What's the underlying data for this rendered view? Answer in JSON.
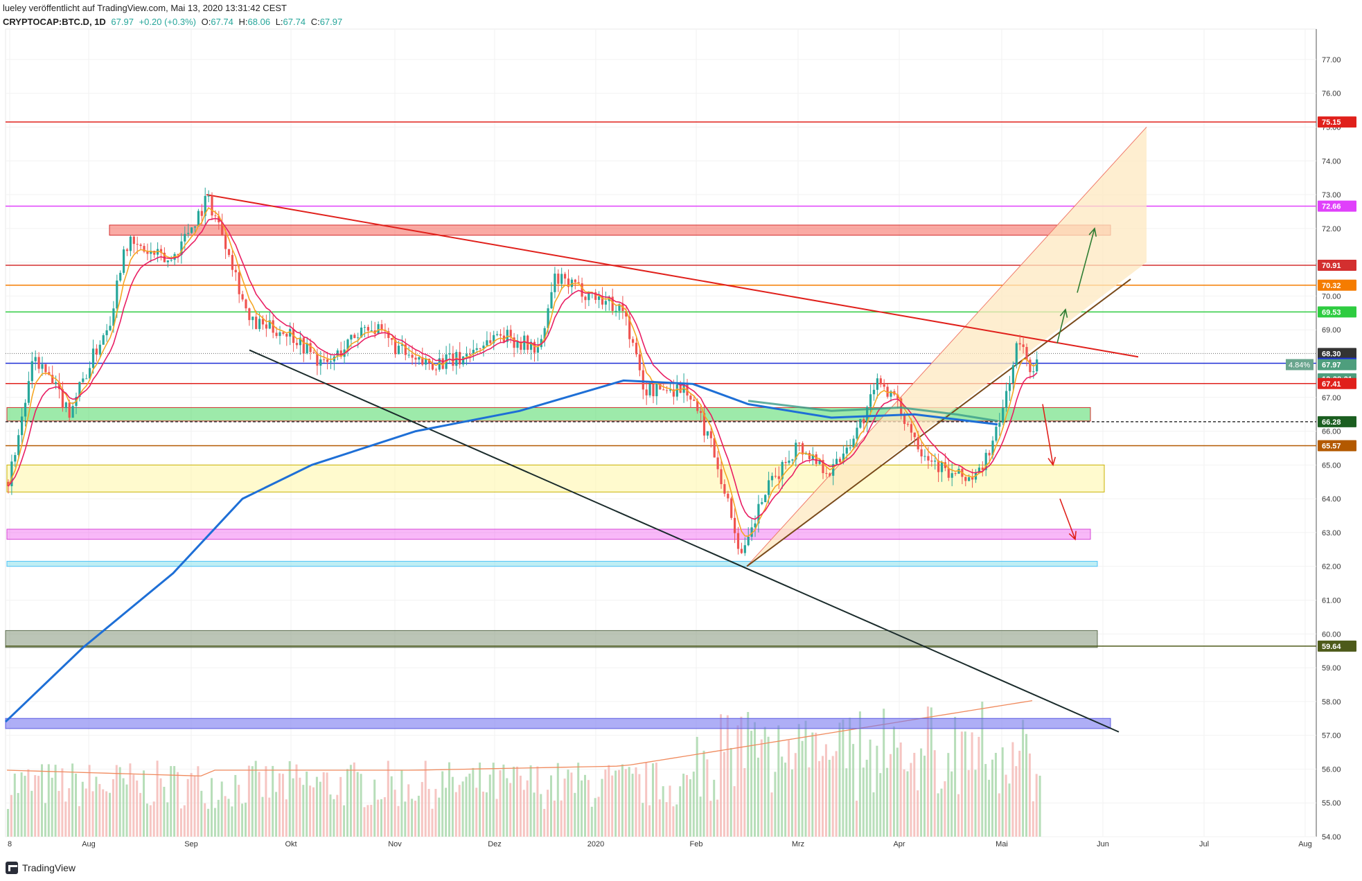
{
  "header": {
    "line1": "lueley veröffentlicht auf TradingView.com, Mai 13, 2020 13:31:42 CEST",
    "symbol": "CRYPTOCAP:BTC.D, 1D",
    "last": "67.97",
    "change": "+0.20 (+0.3%)",
    "o_label": "O:",
    "o": "67.74",
    "h_label": "H:",
    "h": "68.06",
    "l_label": "L:",
    "l": "67.74",
    "c_label": "C:",
    "c": "67.97"
  },
  "footer": {
    "brand": "TradingView"
  },
  "chart_data": {
    "type": "line",
    "title": "",
    "y_range": [
      54.0,
      77.9
    ],
    "y_ticks": [
      "54.00",
      "55.00",
      "56.00",
      "57.00",
      "58.00",
      "59.00",
      "60.00",
      "61.00",
      "62.00",
      "63.00",
      "64.00",
      "65.00",
      "66.00",
      "67.00",
      "68.00",
      "69.00",
      "70.00",
      "71.00",
      "72.00",
      "73.00",
      "74.00",
      "75.00",
      "76.00",
      "77.00"
    ],
    "x_ticks": [
      "8",
      "Aug",
      "Sep",
      "Okt",
      "Nov",
      "Dez",
      "2020",
      "Feb",
      "Mrz",
      "Apr",
      "Mai",
      "Jun",
      "Jul",
      "Aug"
    ],
    "price_labels": [
      {
        "text": "75.15",
        "value": 75.15,
        "color": "#e0201b"
      },
      {
        "text": "72.66",
        "value": 72.66,
        "color": "#e040fb"
      },
      {
        "text": "70.91",
        "value": 70.91,
        "color": "#d32f2f"
      },
      {
        "text": "70.32",
        "value": 70.32,
        "color": "#f57c00"
      },
      {
        "text": "69.53",
        "value": 69.53,
        "color": "#2ecc40"
      },
      {
        "text": "68.30",
        "value": 68.3,
        "color": "#333333"
      },
      {
        "text": "68.01",
        "value": 68.01,
        "color": "#1e2fd6"
      },
      {
        "text": "67.97",
        "value": 67.97,
        "color": "#4e9e7d"
      },
      {
        "text": "12:28:21",
        "value": 67.55,
        "color": "#4e9e7d"
      },
      {
        "text": "67.41",
        "value": 67.41,
        "color": "#e0201b"
      },
      {
        "text": "66.28",
        "value": 66.28,
        "color": "#1b5e20"
      },
      {
        "text": "65.57",
        "value": 65.57,
        "color": "#b35900"
      },
      {
        "text": "59.64",
        "value": 59.64,
        "color": "#4d5a1a"
      }
    ],
    "percent_badge": "4.84%",
    "horizontal_levels": [
      75.15,
      72.66,
      70.91,
      70.32,
      69.53,
      68.01,
      67.41,
      66.28,
      65.57,
      59.64
    ],
    "zones": [
      {
        "from": 71.8,
        "to": 72.1,
        "color": "red"
      },
      {
        "from": 66.3,
        "to": 66.7,
        "color": "green"
      },
      {
        "from": 64.2,
        "to": 65.0,
        "color": "yellow"
      },
      {
        "from": 62.8,
        "to": 63.1,
        "color": "pink"
      },
      {
        "from": 62.0,
        "to": 62.15,
        "color": "cyan"
      },
      {
        "from": 59.6,
        "to": 60.1,
        "color": "olive"
      },
      {
        "from": 57.2,
        "to": 57.5,
        "color": "purple"
      }
    ],
    "close_series": [
      {
        "x": "8",
        "y": 64.5
      },
      {
        "x": "Aug",
        "y": 69.9
      },
      {
        "x": "Sep",
        "y": 72.7
      },
      {
        "x": "Okt",
        "y": 69.0
      },
      {
        "x": "Nov",
        "y": 68.6
      },
      {
        "x": "Dez",
        "y": 68.4
      },
      {
        "x": "2020",
        "y": 69.8
      },
      {
        "x": "Feb",
        "y": 66.2
      },
      {
        "x": "Mrz",
        "y": 64.5
      },
      {
        "x": "Apr",
        "y": 66.6
      },
      {
        "x": "Mai",
        "y": 67.6
      }
    ],
    "grid": true,
    "legend": "none",
    "colors": {
      "up": "#26a69a",
      "down": "#ef5350",
      "ema_short": "#f5a623",
      "ema_mid": "#e91e63",
      "ema_long": "#1e6fd6",
      "ema_teal": "#3a9c8a",
      "trend_red": "#e0201b",
      "trend_black": "#1a2b2b",
      "channel_fill": "#fde8c0"
    }
  }
}
